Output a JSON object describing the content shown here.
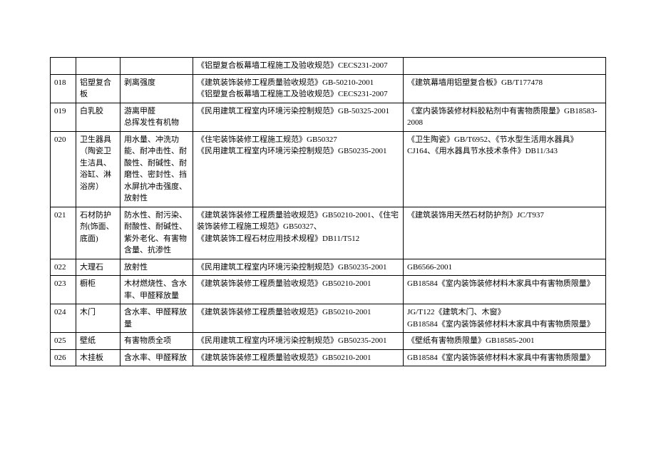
{
  "table": {
    "columns": {
      "id_width": 36,
      "name_width": 62,
      "param_width": 102,
      "spec_width": 295
    },
    "border_color": "#000000",
    "font_size": 11,
    "rows": [
      {
        "id": "",
        "name": "",
        "param": "",
        "spec": "《铝塑复合板幕墙工程施工及验收规范》CECS231-2007",
        "std": ""
      },
      {
        "id": "018",
        "name": "铝塑复合板",
        "param": "剥离强度",
        "spec": "《建筑装饰装修工程质量验收规范》GB-50210-2001\n《铝塑复合板幕墙工程施工及验收规范》CECS231-2007",
        "std": "《建筑幕墙用铝塑复合板》GB/T177478"
      },
      {
        "id": "019",
        "name": "白乳胶",
        "param": "游离甲醛\n总挥发性有机物",
        "spec": "《民用建筑工程室内环境污染控制规范》GB-50325-2001",
        "std": "《室内装饰装修材料胶粘剂中有害物质限量》GB18583-2008"
      },
      {
        "id": "020",
        "name": "卫生器具（陶瓷卫生洁具、浴缸、淋浴房）",
        "param": "用水量、冲洗功能、耐冲击性、耐酸性、耐碱性、耐磨性、密封性、挡水屏抗冲击强度、放射性",
        "spec": "《住宅装饰装修工程施工规范》GB50327\n《民用建筑工程室内环境污染控制规范》GB50235-2001",
        "std": "《卫生陶瓷》GB/T6952、《节水型生活用水器具》CJ164、《用水器具节水技术条件》DB11/343"
      },
      {
        "id": "021",
        "name": "石材防护剂(饰面、底面)",
        "param": "防水性、耐污染、耐酸性、耐碱性、紫外老化、有害物含量、抗渗性",
        "spec": "《建筑装饰装修工程质量验收规范》GB50210-2001、《住宅装饰装修工程施工规范》GB50327、\n《建筑装饰工程石材应用技术规程》DB11/T512",
        "std": "《建筑装饰用天然石材防护剂》JC/T937"
      },
      {
        "id": "022",
        "name": "大理石",
        "param": "放射性",
        "spec": "《民用建筑工程室内环境污染控制规范》GB50235-2001",
        "std": "GB6566-2001"
      },
      {
        "id": "023",
        "name": "橱柜",
        "param": "木材燃烧性、含水率、甲醛释放量",
        "spec": "《建筑装饰装修工程质量验收规范》GB50210-2001",
        "std": "GB18584《室内装饰装修材料木家具中有害物质限量》"
      },
      {
        "id": "024",
        "name": "木门",
        "param": "含水率、甲醛释放量",
        "spec": "《建筑装饰装修工程质量验收规范》GB50210-2001",
        "std": "JG/T122《建筑木门、木窗》\nGB18584《室内装饰装修材料木家具中有害物质限量》"
      },
      {
        "id": "025",
        "name": "壁纸",
        "param": "有害物质全项",
        "spec": "《民用建筑工程室内环境污染控制规范》GB50235-2001",
        "std": "《壁纸有害物质限量》GB18585-2001"
      },
      {
        "id": "026",
        "name": "木挂板",
        "param": "含水率、甲醛释放",
        "spec": "《建筑装饰装修工程质量验收规范》GB50210-2001",
        "std": "GB18584《室内装饰装修材料木家具中有害物质限量》"
      }
    ]
  }
}
